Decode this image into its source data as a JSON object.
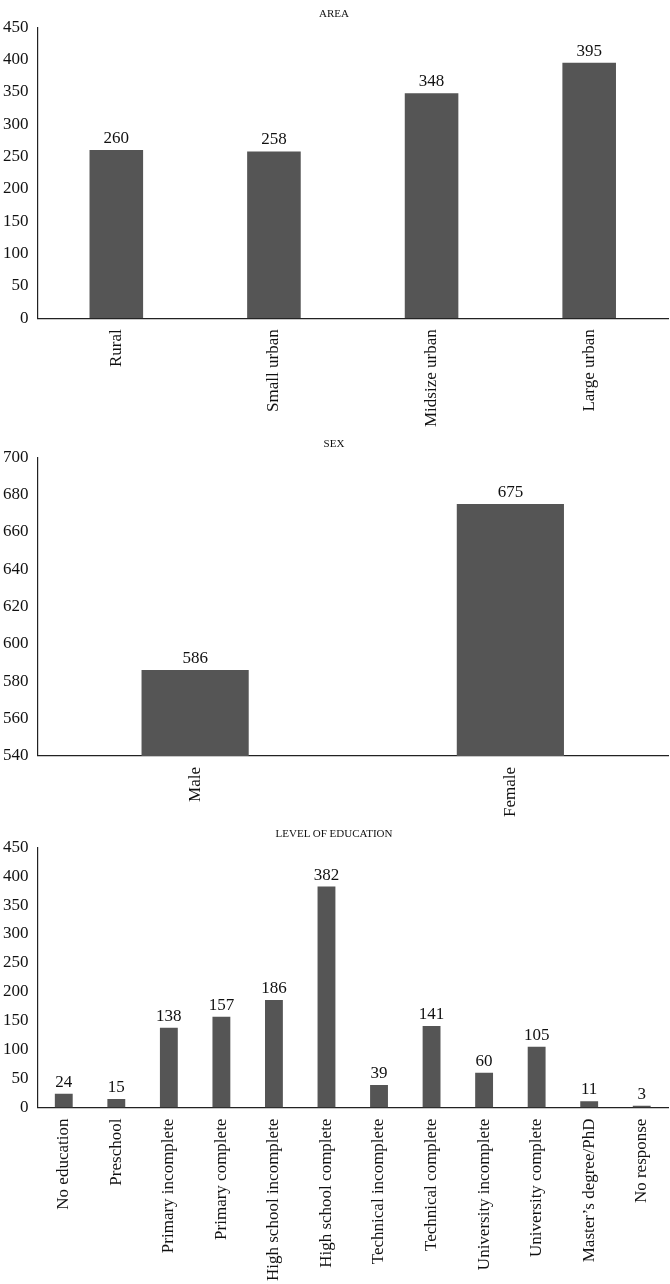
{
  "chart_data": [
    {
      "type": "bar",
      "title": "AREA",
      "categories": [
        "Rural",
        "Small urban",
        "Midsize urban",
        "Large urban"
      ],
      "values": [
        260,
        258,
        348,
        395
      ],
      "color": "#555555",
      "ylim": [
        0,
        450
      ],
      "yticks": [
        0,
        50,
        100,
        150,
        200,
        250,
        300,
        350,
        400,
        450
      ],
      "grid": false,
      "data_labels": true
    },
    {
      "type": "bar",
      "title": "SEX",
      "categories": [
        "Male",
        "Female"
      ],
      "values": [
        586,
        675
      ],
      "color": "#555555",
      "ylim": [
        540,
        700
      ],
      "yticks": [
        540,
        560,
        580,
        600,
        620,
        640,
        660,
        680,
        700
      ],
      "grid": false,
      "data_labels": true
    },
    {
      "type": "bar",
      "title": "LEVEL OF EDUCATION",
      "categories": [
        "No education",
        "Preschool",
        "Primary incomplete",
        "Primary complete",
        "High school incomplete",
        "High school complete",
        "Technical incomplete",
        "Technical complete",
        "University incomplete",
        "University complete",
        "Master’s degree/PhD",
        "No response"
      ],
      "values": [
        24,
        15,
        138,
        157,
        186,
        382,
        39,
        141,
        60,
        105,
        11,
        3
      ],
      "color": "#555555",
      "ylim": [
        0,
        450
      ],
      "yticks": [
        0,
        50,
        100,
        150,
        200,
        250,
        300,
        350,
        400,
        450
      ],
      "grid": false,
      "data_labels": true
    }
  ]
}
